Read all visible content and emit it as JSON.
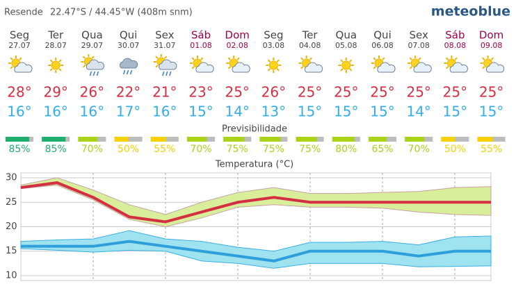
{
  "header": {
    "location": "Resende",
    "coords": "22.47°S / 44.45°W (408m snm)",
    "brand": "meteoblue"
  },
  "predictability_title": "Previsibilidade",
  "days": [
    {
      "name": "Seg",
      "date": "27.07",
      "weekend": false,
      "icon": "sun-cloud",
      "max": "28°",
      "min": "16°",
      "predictability": 85,
      "predictability_label": "85%",
      "predictability_color": "#1fae6f"
    },
    {
      "name": "Ter",
      "date": "28.07",
      "weekend": false,
      "icon": "sun",
      "max": "29°",
      "min": "16°",
      "predictability": 85,
      "predictability_label": "85%",
      "predictability_color": "#1fae6f"
    },
    {
      "name": "Qua",
      "date": "29.07",
      "weekend": false,
      "icon": "sun-rain",
      "max": "26°",
      "min": "16°",
      "predictability": 70,
      "predictability_label": "70%",
      "predictability_color": "#a9d317"
    },
    {
      "name": "Qui",
      "date": "30.07",
      "weekend": false,
      "icon": "rain",
      "max": "22°",
      "min": "17°",
      "predictability": 50,
      "predictability_label": "50%",
      "predictability_color": "#f7d000"
    },
    {
      "name": "Sex",
      "date": "31.07",
      "weekend": false,
      "icon": "sun-rain",
      "max": "21°",
      "min": "16°",
      "predictability": 55,
      "predictability_label": "55%",
      "predictability_color": "#f7d000"
    },
    {
      "name": "Sáb",
      "date": "01.08",
      "weekend": true,
      "icon": "sun-cloud",
      "max": "23°",
      "min": "15°",
      "predictability": 70,
      "predictability_label": "70%",
      "predictability_color": "#a9d317"
    },
    {
      "name": "Dom",
      "date": "02.08",
      "weekend": true,
      "icon": "sun-cloud",
      "max": "25°",
      "min": "14°",
      "predictability": 75,
      "predictability_label": "75%",
      "predictability_color": "#a9d317"
    },
    {
      "name": "Seg",
      "date": "03.08",
      "weekend": false,
      "icon": "sun",
      "max": "26°",
      "min": "13°",
      "predictability": 75,
      "predictability_label": "75%",
      "predictability_color": "#a9d317"
    },
    {
      "name": "Ter",
      "date": "04.08",
      "weekend": false,
      "icon": "sun-cloud",
      "max": "25°",
      "min": "15°",
      "predictability": 75,
      "predictability_label": "75%",
      "predictability_color": "#a9d317"
    },
    {
      "name": "Qua",
      "date": "05.08",
      "weekend": false,
      "icon": "sun",
      "max": "25°",
      "min": "15°",
      "predictability": 80,
      "predictability_label": "80%",
      "predictability_color": "#a9d317"
    },
    {
      "name": "Qui",
      "date": "06.08",
      "weekend": false,
      "icon": "sun-cloud",
      "max": "25°",
      "min": "15°",
      "predictability": 65,
      "predictability_label": "65%",
      "predictability_color": "#a9d317"
    },
    {
      "name": "Sex",
      "date": "07.08",
      "weekend": false,
      "icon": "sun-cloud",
      "max": "25°",
      "min": "14°",
      "predictability": 70,
      "predictability_label": "70%",
      "predictability_color": "#a9d317"
    },
    {
      "name": "Sáb",
      "date": "08.08",
      "weekend": true,
      "icon": "sun-cloud",
      "max": "25°",
      "min": "15°",
      "predictability": 50,
      "predictability_label": "50%",
      "predictability_color": "#f7d000"
    },
    {
      "name": "Dom",
      "date": "09.08",
      "weekend": true,
      "icon": "sun-cloud",
      "max": "25°",
      "min": "15°",
      "predictability": 55,
      "predictability_label": "55%",
      "predictability_color": "#f7d000"
    }
  ],
  "chart_data": {
    "type": "line",
    "title": "Temperatura (°C)",
    "ylim": [
      9,
      31
    ],
    "yticks": [
      10,
      15,
      20,
      25,
      30
    ],
    "grid": true,
    "bands": [
      {
        "color": "#d9ee9a",
        "edge": "#c8a0a0",
        "upper": [
          28.5,
          30,
          27.5,
          24.5,
          22.5,
          25,
          27,
          28,
          26.8,
          26.8,
          27,
          27.2,
          28,
          28.2
        ],
        "lower": [
          27.8,
          28.5,
          25.5,
          21.5,
          20,
          21.8,
          24,
          24.5,
          24,
          24,
          23.8,
          23,
          22.5,
          22.3
        ]
      },
      {
        "color": "#9fe3f1",
        "edge": "#3aaee0",
        "upper": [
          17,
          17.3,
          17.5,
          19.2,
          17.5,
          17,
          15.8,
          15,
          16.8,
          16.8,
          17,
          16.3,
          17.9,
          18.1
        ],
        "lower": [
          15.5,
          15.2,
          14.8,
          15.2,
          15,
          13,
          12.5,
          11.5,
          12.5,
          12.5,
          12.5,
          11.8,
          11.9,
          12
        ]
      }
    ],
    "series": [
      {
        "color": "#d42e42",
        "values": [
          28,
          29,
          26,
          22,
          21,
          23,
          25,
          26,
          25,
          25,
          25,
          25,
          25,
          25
        ]
      },
      {
        "color": "#2e9fd8",
        "values": [
          16,
          16,
          16,
          17,
          16,
          15,
          14,
          13,
          15,
          15,
          15,
          14,
          15,
          15
        ]
      }
    ]
  }
}
